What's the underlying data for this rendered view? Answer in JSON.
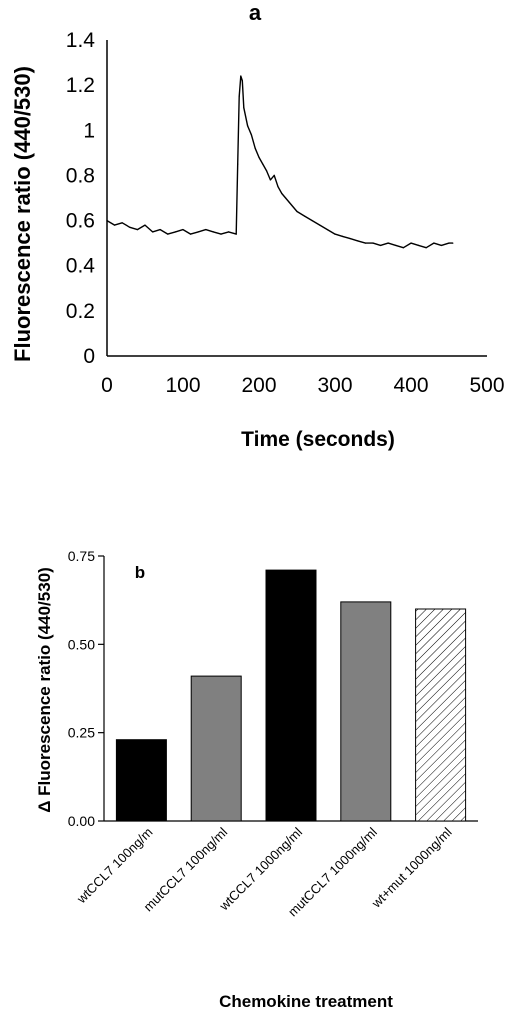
{
  "chart_data": [
    {
      "panel_label": "a",
      "type": "line",
      "title": "",
      "xlabel": "Time (seconds)",
      "ylabel": "Fluorescence ratio (440/530)",
      "xlim": [
        0,
        500
      ],
      "ylim": [
        0,
        1.4
      ],
      "xticks": [
        "0",
        "100",
        "200",
        "300",
        "400",
        "500"
      ],
      "yticks": [
        "0",
        "0.2",
        "0.4",
        "0.6",
        "0.8",
        "1",
        "1.2",
        "1.4"
      ],
      "grid": false,
      "series": [
        {
          "x": [
            0,
            10,
            20,
            30,
            40,
            50,
            60,
            70,
            80,
            90,
            100,
            110,
            120,
            130,
            140,
            150,
            160,
            170,
            172,
            174,
            176,
            178,
            180,
            185,
            190,
            195,
            200,
            205,
            210,
            215,
            220,
            225,
            230,
            235,
            240,
            250,
            260,
            270,
            280,
            290,
            300,
            310,
            320,
            330,
            340,
            350,
            360,
            370,
            380,
            390,
            400,
            410,
            420,
            430,
            440,
            450,
            455
          ],
          "y": [
            0.6,
            0.58,
            0.59,
            0.57,
            0.56,
            0.58,
            0.55,
            0.56,
            0.54,
            0.55,
            0.56,
            0.54,
            0.55,
            0.56,
            0.55,
            0.54,
            0.55,
            0.54,
            0.85,
            1.15,
            1.24,
            1.22,
            1.1,
            1.02,
            0.98,
            0.92,
            0.88,
            0.85,
            0.82,
            0.78,
            0.8,
            0.75,
            0.72,
            0.7,
            0.68,
            0.64,
            0.62,
            0.6,
            0.58,
            0.56,
            0.54,
            0.53,
            0.52,
            0.51,
            0.5,
            0.5,
            0.49,
            0.5,
            0.49,
            0.48,
            0.5,
            0.49,
            0.48,
            0.5,
            0.49,
            0.5,
            0.5
          ]
        }
      ]
    },
    {
      "panel_label": "b",
      "type": "bar",
      "title": "",
      "xlabel": "Chemokine treatment",
      "ylabel": "Δ Fluorescence ratio (440/530)",
      "ylim": [
        0,
        0.75
      ],
      "yticks": [
        "0.00",
        "0.25",
        "0.50",
        "0.75"
      ],
      "grid": false,
      "categories": [
        "wtCCL7 100ng/m",
        "mutCCL7 100ng/ml",
        "wtCCL7 1000ng/ml",
        "mutCCL7 1000ng/ml",
        "wt+mut 1000ng/ml"
      ],
      "values": [
        0.23,
        0.41,
        0.71,
        0.62,
        0.6
      ],
      "bar_fills": [
        "#000000",
        "#808080",
        "#000000",
        "#808080",
        "hatch"
      ]
    }
  ]
}
